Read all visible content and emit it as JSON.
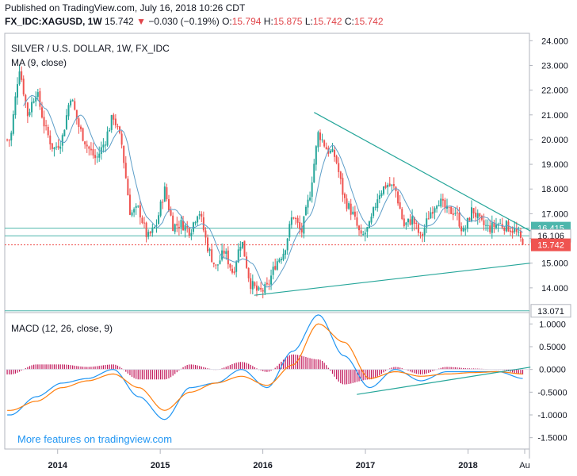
{
  "header": {
    "published_line": "Published on TradingView.com, July 16, 2018 10:26 CDT",
    "symbol": "FX_IDC:XAGUSD, 1W",
    "last": "15.742",
    "change": "−0.030 (−0.19%)",
    "o_label": "O:",
    "o_value": "15.794",
    "h_label": "H:",
    "h_value": "15.875",
    "l_label": "L:",
    "l_value": "15.742",
    "c_label": "C:",
    "c_value": "15.742"
  },
  "price_pane": {
    "title": "SILVER / U.S. DOLLAR, 1W, FX_IDC",
    "ma_label": "MA (9, close)",
    "y_ticks": [
      "24.000",
      "23.000",
      "22.000",
      "21.000",
      "20.000",
      "19.000",
      "18.000",
      "17.000",
      "16.000",
      "15.000",
      "14.000"
    ],
    "price_labels": [
      {
        "text": "16.415",
        "value": 16.415,
        "bg": "#4db6ac",
        "fg": "#ffffff"
      },
      {
        "text": "16.106",
        "value": 16.106,
        "bg": "#ffffff",
        "fg": "#131722"
      },
      {
        "text": "15.742",
        "value": 15.742,
        "bg": "#ef5350",
        "fg": "#ffffff"
      },
      {
        "text": "13.071",
        "value": 13.071,
        "bg": "#ffffff",
        "fg": "#131722"
      }
    ]
  },
  "macd_pane": {
    "title": "MACD (12, 26, close, 9)",
    "y_ticks": [
      "1.0000",
      "0.5000",
      "0.0000",
      "-0.5000",
      "-1.0000",
      "-1.5000"
    ]
  },
  "x_ticks": [
    "2014",
    "2015",
    "2016",
    "2017",
    "2018",
    "Au"
  ],
  "watermark": "More features on tradingview.com",
  "colors": {
    "up": "#26a69a",
    "down": "#ef5350",
    "ma": "#5d9ec8",
    "macd": "#2196f3",
    "signal": "#ff7f0e",
    "histogram": "#c2185b",
    "trendline": "#26a69a",
    "hline": "#4db6ac",
    "watermark": "#2196f3"
  },
  "chart_data": [
    {
      "type": "candlestick",
      "title": "SILVER / U.S. DOLLAR, 1W, FX_IDC",
      "interval": "1W",
      "ylim": [
        13.0,
        24.3
      ],
      "x_range": [
        "2013-07",
        "2018-08"
      ],
      "anchor_closes": [
        [
          "2013-07",
          20.0
        ],
        [
          "2013-08",
          23.0
        ],
        [
          "2013-09",
          21.0
        ],
        [
          "2013-10",
          22.0
        ],
        [
          "2013-11",
          20.5
        ],
        [
          "2013-12",
          19.6
        ],
        [
          "2014-01",
          20.0
        ],
        [
          "2014-02",
          21.8
        ],
        [
          "2014-03",
          20.5
        ],
        [
          "2014-04",
          19.7
        ],
        [
          "2014-05",
          19.2
        ],
        [
          "2014-06",
          19.9
        ],
        [
          "2014-07",
          21.0
        ],
        [
          "2014-08",
          19.8
        ],
        [
          "2014-09",
          17.0
        ],
        [
          "2014-10",
          17.2
        ],
        [
          "2014-11",
          16.0
        ],
        [
          "2014-12",
          16.5
        ],
        [
          "2015-01",
          18.0
        ],
        [
          "2015-02",
          16.5
        ],
        [
          "2015-03",
          16.6
        ],
        [
          "2015-04",
          16.3
        ],
        [
          "2015-05",
          17.2
        ],
        [
          "2015-06",
          15.7
        ],
        [
          "2015-07",
          14.8
        ],
        [
          "2015-08",
          15.5
        ],
        [
          "2015-09",
          14.6
        ],
        [
          "2015-10",
          16.0
        ],
        [
          "2015-11",
          14.2
        ],
        [
          "2015-12",
          13.8
        ],
        [
          "2016-01",
          14.0
        ],
        [
          "2016-02",
          15.0
        ],
        [
          "2016-03",
          15.5
        ],
        [
          "2016-04",
          17.0
        ],
        [
          "2016-05",
          16.2
        ],
        [
          "2016-06",
          17.8
        ],
        [
          "2016-07",
          20.3
        ],
        [
          "2016-08",
          19.6
        ],
        [
          "2016-09",
          19.3
        ],
        [
          "2016-10",
          17.6
        ],
        [
          "2016-11",
          17.0
        ],
        [
          "2016-12",
          16.0
        ],
        [
          "2017-01",
          16.5
        ],
        [
          "2017-02",
          17.8
        ],
        [
          "2017-03",
          18.2
        ],
        [
          "2017-04",
          18.0
        ],
        [
          "2017-05",
          16.5
        ],
        [
          "2017-06",
          16.8
        ],
        [
          "2017-07",
          16.0
        ],
        [
          "2017-08",
          17.0
        ],
        [
          "2017-09",
          17.6
        ],
        [
          "2017-10",
          17.1
        ],
        [
          "2017-11",
          17.1
        ],
        [
          "2017-12",
          16.2
        ],
        [
          "2018-01",
          17.2
        ],
        [
          "2018-02",
          16.6
        ],
        [
          "2018-03",
          16.4
        ],
        [
          "2018-04",
          16.6
        ],
        [
          "2018-05",
          16.5
        ],
        [
          "2018-06",
          16.3
        ],
        [
          "2018-07",
          15.742
        ]
      ],
      "moving_average": {
        "name": "MA (9, close)",
        "period": 9
      },
      "horizontal_lines": [
        16.415,
        16.106,
        13.071
      ],
      "last_price_line": 15.742,
      "trendlines": [
        {
          "from": [
            "2016-07",
            21.1
          ],
          "to": [
            "2018-07",
            16.3
          ]
        },
        {
          "from": [
            "2015-12",
            13.7
          ],
          "to": [
            "2018-07",
            15.0
          ]
        }
      ]
    },
    {
      "type": "line",
      "title": "MACD (12, 26, close, 9)",
      "ylim": [
        -1.75,
        1.25
      ],
      "series": [
        {
          "name": "MACD",
          "color": "#2196f3",
          "x": [
            "2013-07",
            "2013-10",
            "2014-01",
            "2014-04",
            "2014-07",
            "2014-10",
            "2015-01",
            "2015-04",
            "2015-07",
            "2015-10",
            "2016-01",
            "2016-04",
            "2016-07",
            "2016-10",
            "2017-01",
            "2017-04",
            "2017-07",
            "2017-10",
            "2018-01",
            "2018-04",
            "2018-07"
          ],
          "values": [
            -1.0,
            -0.6,
            -0.3,
            -0.2,
            0.0,
            -0.6,
            -1.1,
            -0.4,
            -0.3,
            0.0,
            -0.4,
            0.4,
            1.2,
            0.3,
            -0.4,
            0.0,
            -0.25,
            -0.05,
            -0.05,
            -0.05,
            -0.2
          ]
        },
        {
          "name": "Signal",
          "color": "#ff7f0e",
          "x": [
            "2013-07",
            "2013-10",
            "2014-01",
            "2014-04",
            "2014-07",
            "2014-10",
            "2015-01",
            "2015-04",
            "2015-07",
            "2015-10",
            "2016-01",
            "2016-04",
            "2016-07",
            "2016-10",
            "2017-01",
            "2017-04",
            "2017-07",
            "2017-10",
            "2018-01",
            "2018-04",
            "2018-07"
          ],
          "values": [
            -0.9,
            -0.7,
            -0.4,
            -0.25,
            -0.1,
            -0.4,
            -0.9,
            -0.5,
            -0.3,
            -0.15,
            -0.35,
            0.1,
            1.0,
            0.6,
            -0.2,
            -0.05,
            -0.15,
            -0.1,
            -0.07,
            -0.05,
            -0.1
          ]
        }
      ],
      "histogram": {
        "name": "Histogram",
        "color": "#c2185b"
      },
      "trendlines": [
        {
          "from": [
            "2016-12",
            -0.55
          ],
          "to": [
            "2018-07",
            0.05
          ]
        }
      ]
    }
  ]
}
